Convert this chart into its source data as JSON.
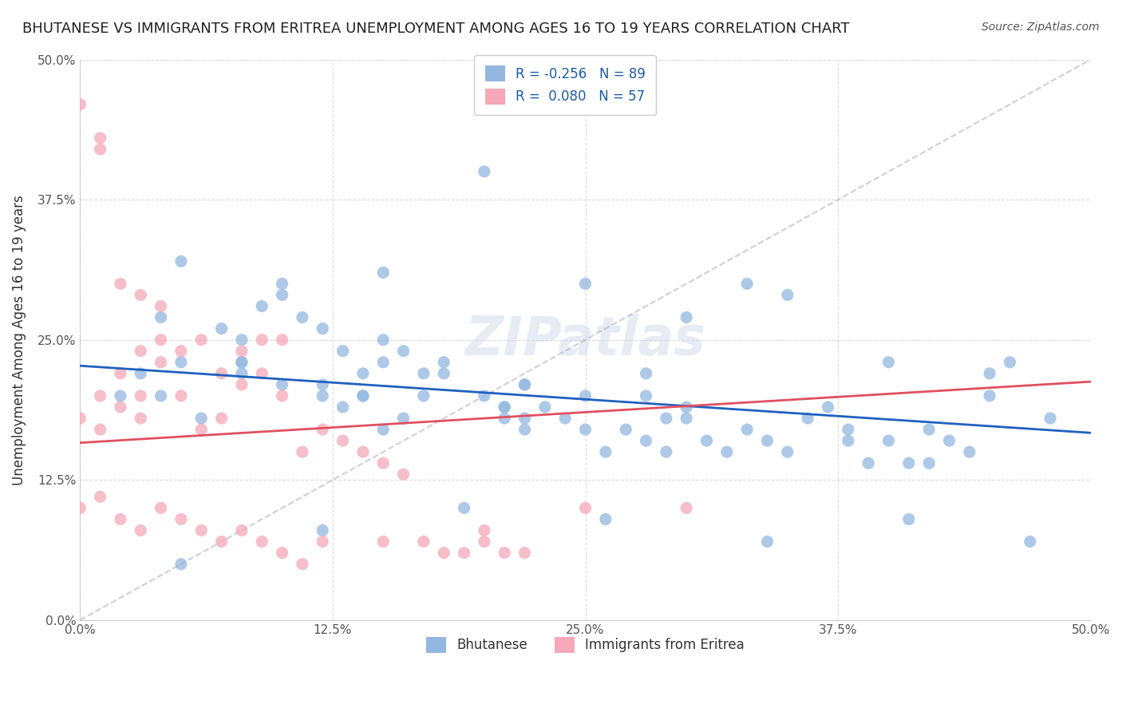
{
  "title": "BHUTANESE VS IMMIGRANTS FROM ERITREA UNEMPLOYMENT AMONG AGES 16 TO 19 YEARS CORRELATION CHART",
  "source": "Source: ZipAtlas.com",
  "xlabel": "",
  "ylabel": "Unemployment Among Ages 16 to 19 years",
  "xlim": [
    0,
    0.5
  ],
  "ylim": [
    0,
    0.5
  ],
  "xticks": [
    0.0,
    0.125,
    0.25,
    0.375,
    0.5
  ],
  "yticks": [
    0.0,
    0.125,
    0.25,
    0.375,
    0.5
  ],
  "xticklabels": [
    "0.0%",
    "12.5%",
    "25.0%",
    "37.5%",
    "50.0%"
  ],
  "yticklabels": [
    "0.0%",
    "12.5%",
    "25.0%",
    "37.5%",
    "50.0%"
  ],
  "blue_R": -0.256,
  "blue_N": 89,
  "pink_R": 0.08,
  "pink_N": 57,
  "blue_color": "#93b8e0",
  "pink_color": "#f4a8b8",
  "blue_line_color": "#2060c0",
  "pink_line_color": "#e05060",
  "trend_line_color": "#c0c0d0",
  "watermark": "ZIPatlas",
  "background_color": "#ffffff",
  "blue_scatter_x": [
    0.02,
    0.04,
    0.05,
    0.04,
    0.03,
    0.06,
    0.05,
    0.07,
    0.08,
    0.08,
    0.09,
    0.1,
    0.08,
    0.1,
    0.11,
    0.12,
    0.12,
    0.13,
    0.12,
    0.14,
    0.14,
    0.15,
    0.13,
    0.15,
    0.16,
    0.17,
    0.16,
    0.18,
    0.17,
    0.2,
    0.21,
    0.22,
    0.21,
    0.23,
    0.22,
    0.24,
    0.25,
    0.25,
    0.26,
    0.27,
    0.28,
    0.29,
    0.28,
    0.3,
    0.31,
    0.32,
    0.33,
    0.34,
    0.35,
    0.36,
    0.37,
    0.38,
    0.39,
    0.4,
    0.41,
    0.42,
    0.43,
    0.44,
    0.45,
    0.46,
    0.3,
    0.2,
    0.25,
    0.35,
    0.1,
    0.15,
    0.18,
    0.22,
    0.28,
    0.33,
    0.4,
    0.45,
    0.48,
    0.15,
    0.22,
    0.3,
    0.38,
    0.42,
    0.05,
    0.12,
    0.19,
    0.26,
    0.34,
    0.41,
    0.47,
    0.08,
    0.14,
    0.21,
    0.29
  ],
  "blue_scatter_y": [
    0.2,
    0.2,
    0.32,
    0.27,
    0.22,
    0.18,
    0.23,
    0.26,
    0.25,
    0.23,
    0.28,
    0.3,
    0.22,
    0.21,
    0.27,
    0.21,
    0.2,
    0.24,
    0.26,
    0.22,
    0.2,
    0.23,
    0.19,
    0.25,
    0.24,
    0.22,
    0.18,
    0.22,
    0.2,
    0.2,
    0.19,
    0.21,
    0.18,
    0.19,
    0.17,
    0.18,
    0.17,
    0.2,
    0.15,
    0.17,
    0.16,
    0.15,
    0.2,
    0.18,
    0.16,
    0.15,
    0.17,
    0.16,
    0.15,
    0.18,
    0.19,
    0.16,
    0.14,
    0.16,
    0.14,
    0.17,
    0.16,
    0.15,
    0.22,
    0.23,
    0.27,
    0.4,
    0.3,
    0.29,
    0.29,
    0.31,
    0.23,
    0.21,
    0.22,
    0.3,
    0.23,
    0.2,
    0.18,
    0.17,
    0.18,
    0.19,
    0.17,
    0.14,
    0.05,
    0.08,
    0.1,
    0.09,
    0.07,
    0.09,
    0.07,
    0.23,
    0.2,
    0.19,
    0.18
  ],
  "pink_scatter_x": [
    0.0,
    0.01,
    0.01,
    0.02,
    0.02,
    0.01,
    0.03,
    0.03,
    0.03,
    0.04,
    0.04,
    0.05,
    0.05,
    0.06,
    0.06,
    0.07,
    0.07,
    0.08,
    0.08,
    0.09,
    0.09,
    0.1,
    0.1,
    0.11,
    0.12,
    0.13,
    0.14,
    0.15,
    0.16,
    0.17,
    0.18,
    0.19,
    0.2,
    0.21,
    0.22,
    0.0,
    0.01,
    0.02,
    0.03,
    0.04,
    0.0,
    0.01,
    0.02,
    0.03,
    0.04,
    0.05,
    0.06,
    0.07,
    0.08,
    0.09,
    0.1,
    0.11,
    0.12,
    0.15,
    0.2,
    0.25,
    0.3
  ],
  "pink_scatter_y": [
    0.18,
    0.17,
    0.2,
    0.19,
    0.22,
    0.42,
    0.2,
    0.18,
    0.24,
    0.23,
    0.25,
    0.2,
    0.24,
    0.17,
    0.25,
    0.22,
    0.18,
    0.24,
    0.21,
    0.25,
    0.22,
    0.2,
    0.25,
    0.15,
    0.17,
    0.16,
    0.15,
    0.14,
    0.13,
    0.07,
    0.06,
    0.06,
    0.07,
    0.06,
    0.06,
    0.46,
    0.43,
    0.3,
    0.29,
    0.28,
    0.1,
    0.11,
    0.09,
    0.08,
    0.1,
    0.09,
    0.08,
    0.07,
    0.08,
    0.07,
    0.06,
    0.05,
    0.07,
    0.07,
    0.08,
    0.1,
    0.1
  ]
}
